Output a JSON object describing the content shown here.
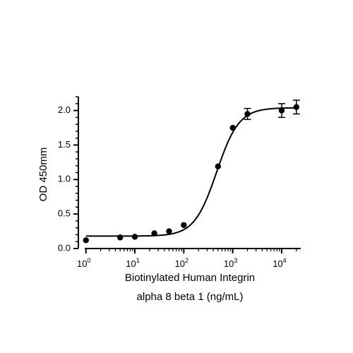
{
  "chart_data": {
    "type": "scatter",
    "title": "",
    "xlabel_line1": "Biotinylated Human Integrin",
    "xlabel_line2": "alpha 8 beta 1 (ng/mL)",
    "ylabel": "OD 450mm",
    "xscale": "log",
    "xlim": [
      0.7,
      30000
    ],
    "ylim": [
      0,
      2.2
    ],
    "grid": false,
    "legend": "none",
    "y_ticks": [
      {
        "value": 0.0,
        "label": "0.0"
      },
      {
        "value": 0.5,
        "label": "0.5"
      },
      {
        "value": 1.0,
        "label": "1.0"
      },
      {
        "value": 1.5,
        "label": "1.5"
      },
      {
        "value": 2.0,
        "label": "2.0"
      }
    ],
    "x_ticks": [
      {
        "value": 1,
        "base": "10",
        "exp": "0"
      },
      {
        "value": 10,
        "base": "10",
        "exp": "1"
      },
      {
        "value": 100,
        "base": "10",
        "exp": "2"
      },
      {
        "value": 1000,
        "base": "10",
        "exp": "3"
      },
      {
        "value": 10000,
        "base": "10",
        "exp": "4"
      }
    ],
    "points": [
      {
        "x": 1,
        "y": 0.12,
        "err": 0
      },
      {
        "x": 5,
        "y": 0.16,
        "err": 0
      },
      {
        "x": 10,
        "y": 0.17,
        "err": 0
      },
      {
        "x": 25,
        "y": 0.22,
        "err": 0
      },
      {
        "x": 50,
        "y": 0.25,
        "err": 0
      },
      {
        "x": 100,
        "y": 0.34,
        "err": 0
      },
      {
        "x": 500,
        "y": 1.19,
        "err": 0
      },
      {
        "x": 1000,
        "y": 1.75,
        "err": 0
      },
      {
        "x": 2000,
        "y": 1.95,
        "err": 0.08
      },
      {
        "x": 10000,
        "y": 2.0,
        "err": 0.1
      },
      {
        "x": 20000,
        "y": 2.05,
        "err": 0.1
      }
    ],
    "fit": {
      "model": "4PL",
      "bottom": 0.18,
      "top": 2.04,
      "ec50": 470,
      "hill": 1.9
    },
    "colors": {
      "marker": "#000000",
      "line": "#000000",
      "axis": "#000000"
    }
  }
}
